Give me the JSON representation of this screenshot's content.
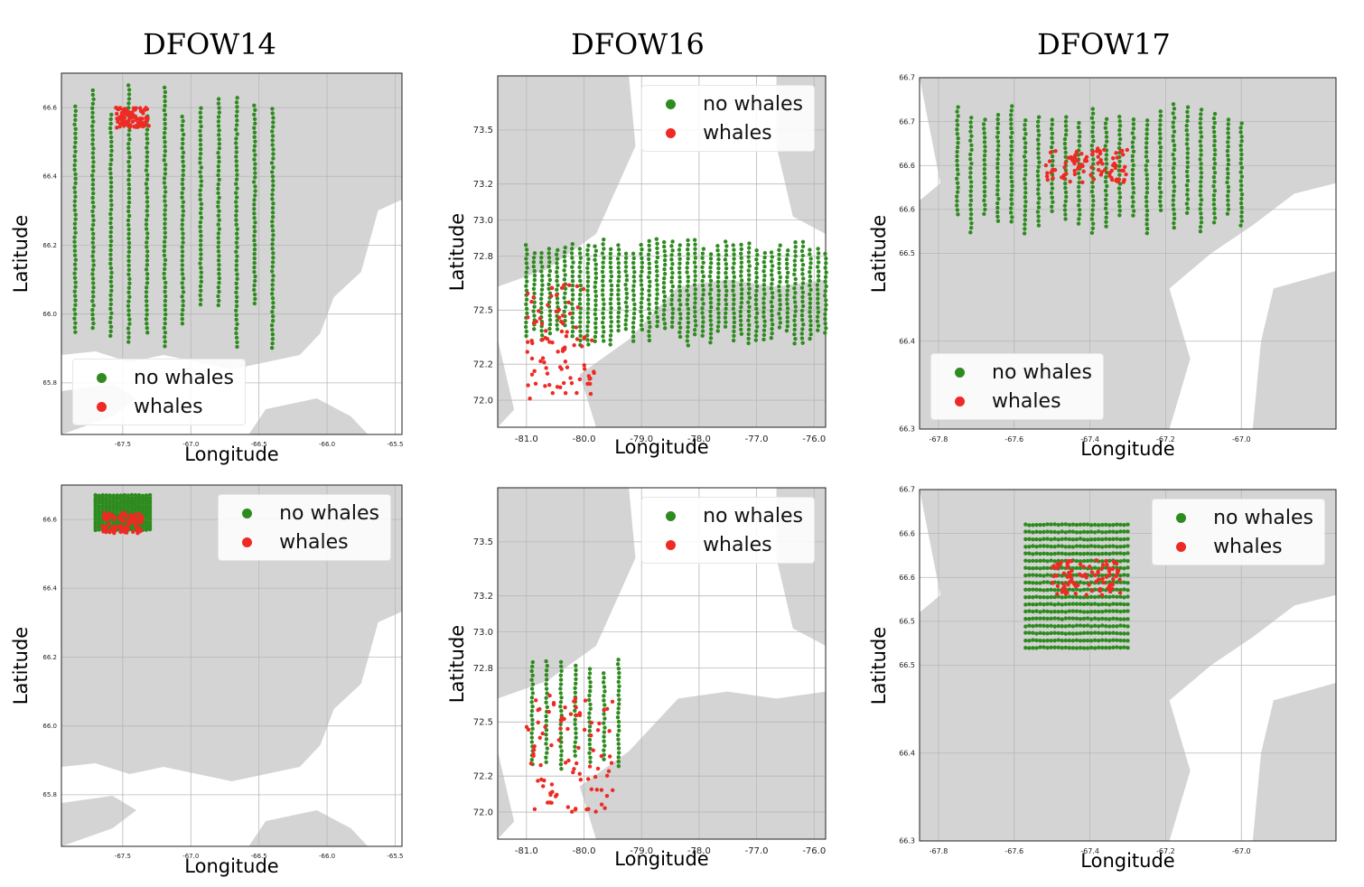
{
  "colors": {
    "no_whales": "#2e8b1f",
    "whales": "#ee2a24",
    "land": "#d4d4d4",
    "water": "#ffffff",
    "grid": "#b8b8b8"
  },
  "columns": [
    "DFOW14",
    "DFOW16",
    "DFOW17"
  ],
  "legend": {
    "no_whales": "no whales",
    "whales": "whales"
  },
  "chart_data": [
    {
      "type": "scatter",
      "title": "DFOW14",
      "row": "top",
      "xlabel": "Longitude",
      "ylabel": "Latitude",
      "xlim": [
        -67.95,
        -65.45
      ],
      "ylim": [
        65.65,
        66.7
      ],
      "xticks": [
        "-67.5",
        "-67.0",
        "-66.5",
        "-66.0",
        "-65.5"
      ],
      "xtick_values": [
        -67.5,
        -67.0,
        -66.5,
        -66.0,
        -65.5
      ],
      "yticks": [
        "65.8",
        "66.0",
        "66.2",
        "66.4",
        "66.6"
      ],
      "ytick_values": [
        65.8,
        66.0,
        66.2,
        66.4,
        66.6
      ],
      "grid": true,
      "legend_position": "lower-left",
      "tick_size": 7,
      "series": [
        {
          "name": "no whales",
          "pattern": "survey",
          "region": {
            "lon": [
              -67.85,
              -66.4
            ],
            "lat": [
              65.9,
              66.68
            ]
          },
          "legs": 12
        },
        {
          "name": "whales",
          "pattern": "cluster",
          "region": {
            "lon": [
              -67.55,
              -67.3
            ],
            "lat": [
              66.54,
              66.6
            ]
          }
        }
      ]
    },
    {
      "type": "scatter",
      "title": "DFOW16",
      "row": "top",
      "xlabel": "Longitude",
      "ylabel": "Latitude",
      "xlim": [
        -81.5,
        -75.8
      ],
      "ylim": [
        71.85,
        73.8
      ],
      "xticks": [
        "-81.0",
        "-80.0",
        "-79.0",
        "-78.0",
        "-77.0",
        "-76.0"
      ],
      "xtick_values": [
        -81,
        -80,
        -79,
        -78,
        -77,
        -76
      ],
      "yticks": [
        "72.0",
        "72.2",
        "72.5",
        "72.8",
        "73.0",
        "73.2",
        "73.5"
      ],
      "ytick_values": [
        72.0,
        72.2,
        72.5,
        72.8,
        73.0,
        73.2,
        73.5
      ],
      "grid": true,
      "legend_position": "top-right",
      "tick_size": 10,
      "series": [
        {
          "name": "no whales",
          "pattern": "survey",
          "region": {
            "lon": [
              -81.0,
              -75.8
            ],
            "lat": [
              72.3,
              72.9
            ]
          },
          "legs": 40
        },
        {
          "name": "whales",
          "pattern": "cluster",
          "region": {
            "lon": [
              -81.0,
              -79.8
            ],
            "lat": [
              72.0,
              72.65
            ]
          }
        }
      ]
    },
    {
      "type": "scatter",
      "title": "DFOW17",
      "row": "top",
      "xlabel": "Longitude",
      "ylabel": "Latitude",
      "xlim": [
        -67.85,
        -66.75
      ],
      "ylim": [
        66.3,
        66.7
      ],
      "xticks": [
        "-67.8",
        "-67.6",
        "-67.4",
        "-67.2",
        "-67.0"
      ],
      "xtick_values": [
        -67.8,
        -67.6,
        -67.4,
        -67.2,
        -67.0
      ],
      "yticks": [
        "66.3",
        "66.4",
        "66.5",
        "66.6",
        "66.6",
        "66.7",
        "66.7"
      ],
      "ytick_values": [
        66.3,
        66.4,
        66.5,
        66.55,
        66.6,
        66.65,
        66.7
      ],
      "grid": true,
      "legend_position": "lower-left",
      "tick_size": 8,
      "series": [
        {
          "name": "no whales",
          "pattern": "survey",
          "region": {
            "lon": [
              -67.75,
              -67.0
            ],
            "lat": [
              66.52,
              66.67
            ]
          },
          "legs": 22
        },
        {
          "name": "whales",
          "pattern": "cluster",
          "region": {
            "lon": [
              -67.52,
              -67.3
            ],
            "lat": [
              66.58,
              66.62
            ]
          }
        }
      ]
    },
    {
      "type": "scatter",
      "title": "",
      "row": "bottom",
      "xlabel": "Longitude",
      "ylabel": "Latitude",
      "xlim": [
        -67.95,
        -65.45
      ],
      "ylim": [
        65.65,
        66.7
      ],
      "xticks": [
        "-67.5",
        "-67.0",
        "-66.5",
        "-66.0",
        "-65.5"
      ],
      "xtick_values": [
        -67.5,
        -67.0,
        -66.5,
        -66.0,
        -65.5
      ],
      "yticks": [
        "65.8",
        "66.0",
        "66.2",
        "66.4",
        "66.6"
      ],
      "ytick_values": [
        65.8,
        66.0,
        66.2,
        66.4,
        66.6
      ],
      "grid": true,
      "legend_position": "top-right",
      "tick_size": 7,
      "series": [
        {
          "name": "no whales",
          "pattern": "block",
          "region": {
            "lon": [
              -67.7,
              -67.3
            ],
            "lat": [
              66.57,
              66.67
            ]
          }
        },
        {
          "name": "whales",
          "pattern": "cluster",
          "region": {
            "lon": [
              -67.65,
              -67.35
            ],
            "lat": [
              66.56,
              66.62
            ]
          }
        }
      ]
    },
    {
      "type": "scatter",
      "title": "",
      "row": "bottom",
      "xlabel": "Longitude",
      "ylabel": "Latitude",
      "xlim": [
        -81.5,
        -75.8
      ],
      "ylim": [
        71.85,
        73.8
      ],
      "xticks": [
        "-81.0",
        "-80.0",
        "-79.0",
        "-78.0",
        "-77.0",
        "-76.0"
      ],
      "xtick_values": [
        -81,
        -80,
        -79,
        -78,
        -77,
        -76
      ],
      "yticks": [
        "72.0",
        "72.2",
        "72.5",
        "72.8",
        "73.0",
        "73.2",
        "73.5"
      ],
      "ytick_values": [
        72.0,
        72.2,
        72.5,
        72.8,
        73.0,
        73.2,
        73.5
      ],
      "grid": true,
      "legend_position": "top-right",
      "tick_size": 10,
      "series": [
        {
          "name": "no whales",
          "pattern": "survey",
          "region": {
            "lon": [
              -80.9,
              -79.4
            ],
            "lat": [
              72.2,
              72.85
            ]
          },
          "legs": 7
        },
        {
          "name": "whales",
          "pattern": "cluster",
          "region": {
            "lon": [
              -81.0,
              -79.5
            ],
            "lat": [
              72.0,
              72.65
            ]
          }
        }
      ]
    },
    {
      "type": "scatter",
      "title": "",
      "row": "bottom",
      "xlabel": "Longitude",
      "ylabel": "Latitude",
      "xlim": [
        -67.85,
        -66.75
      ],
      "ylim": [
        66.3,
        66.7
      ],
      "xticks": [
        "-67.8",
        "-67.6",
        "-67.4",
        "-67.2",
        "-67.0"
      ],
      "xtick_values": [
        -67.8,
        -67.6,
        -67.4,
        -67.2,
        -67.0
      ],
      "yticks": [
        "66.3",
        "66.4",
        "66.5",
        "66.5",
        "66.6",
        "66.6",
        "66.7"
      ],
      "ytick_values": [
        66.3,
        66.4,
        66.5,
        66.55,
        66.6,
        66.65,
        66.7
      ],
      "grid": true,
      "legend_position": "top-right",
      "tick_size": 8,
      "series": [
        {
          "name": "no whales",
          "pattern": "block",
          "region": {
            "lon": [
              -67.57,
              -67.3
            ],
            "lat": [
              66.52,
              66.66
            ]
          }
        },
        {
          "name": "whales",
          "pattern": "cluster",
          "region": {
            "lon": [
              -67.5,
              -67.32
            ],
            "lat": [
              66.58,
              66.62
            ]
          }
        }
      ]
    }
  ]
}
